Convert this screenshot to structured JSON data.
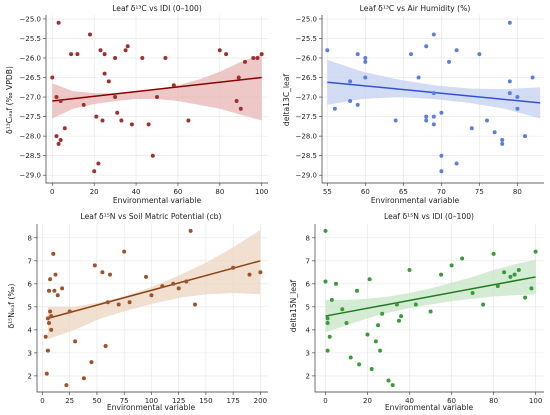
{
  "chart_data": [
    {
      "type": "scatter",
      "title": "Leaf δ¹³C vs IDI (0–100)",
      "xlabel": "Environmental variable",
      "ylabel": "δ¹³Cₗₑₐf (‰ VPDB)",
      "xlim": [
        -3,
        103
      ],
      "ylim": [
        -29.2,
        -24.9
      ],
      "xticks": [
        0,
        20,
        40,
        60,
        80,
        100
      ],
      "yticks": [
        -25.0,
        -25.5,
        -26.0,
        -26.5,
        -27.0,
        -27.5,
        -28.0,
        -28.5,
        -29.0
      ],
      "xtick_labels": [
        "0",
        "20",
        "40",
        "60",
        "80",
        "100"
      ],
      "ytick_labels": [
        "−25.0",
        "−25.5",
        "−26.0",
        "−26.5",
        "−27.0",
        "−27.5",
        "−28.0",
        "−28.5",
        "−29.0"
      ],
      "point_color": "#a03030",
      "line_color": "#8b0000",
      "band_color": "#e8b4b4",
      "grid": true,
      "fit": {
        "x": [
          0,
          100
        ],
        "y": [
          -27.1,
          -26.5
        ]
      },
      "band_lower": [
        -27.55,
        -27.3,
        -27.18,
        -27.1,
        -27.05,
        -27.05,
        -27.1,
        -27.2,
        -27.3,
        -27.45,
        -27.6
      ],
      "band_upper": [
        -26.65,
        -26.85,
        -26.9,
        -26.9,
        -26.87,
        -26.8,
        -26.7,
        -26.55,
        -26.35,
        -26.1,
        -25.9
      ],
      "points": {
        "x": [
          0,
          2,
          2,
          3,
          3,
          4,
          4,
          6,
          9,
          12,
          15,
          18,
          20,
          21,
          22,
          23,
          24,
          25,
          25,
          27,
          30,
          30,
          31,
          33,
          35,
          36,
          38,
          43,
          46,
          48,
          50,
          54,
          58,
          65,
          80,
          83,
          88,
          89,
          90,
          92,
          96,
          98,
          100
        ],
        "y": [
          -26.5,
          -27.0,
          -28.0,
          -25.1,
          -28.2,
          -28.1,
          -27.1,
          -27.8,
          -25.9,
          -25.9,
          -27.2,
          -25.4,
          -28.9,
          -27.5,
          -28.7,
          -25.8,
          -27.6,
          -26.4,
          -25.9,
          -26.6,
          -27.0,
          -26.0,
          -27.4,
          -27.6,
          -25.8,
          -25.7,
          -27.7,
          -26.0,
          -27.7,
          -28.5,
          -27.0,
          -26.0,
          -26.7,
          -27.6,
          -25.8,
          -25.9,
          -27.1,
          -26.5,
          -27.3,
          -26.1,
          -26.0,
          -26.0,
          -25.9
        ]
      }
    },
    {
      "type": "scatter",
      "title": "Leaf δ¹³C vs Air Humidity (%)",
      "xlabel": "Environmental variable",
      "ylabel": "delta13C_leaf",
      "xlim": [
        54.3,
        83.5
      ],
      "ylim": [
        -29.2,
        -24.9
      ],
      "xticks": [
        55,
        60,
        65,
        70,
        75,
        80
      ],
      "yticks": [
        -25.0,
        -25.5,
        -26.0,
        -26.5,
        -27.0,
        -27.5,
        -28.0,
        -28.5,
        -29.0
      ],
      "xtick_labels": [
        "55",
        "60",
        "65",
        "70",
        "75",
        "80"
      ],
      "ytick_labels": [
        "−25.0",
        "−25.5",
        "−26.0",
        "−26.5",
        "−27.0",
        "−27.5",
        "−28.0",
        "−28.5",
        "−29.0"
      ],
      "point_color": "#5b80d8",
      "line_color": "#3355cc",
      "band_color": "#c4d0f2",
      "grid": true,
      "fit": {
        "x": [
          55,
          83
        ],
        "y": [
          -26.62,
          -27.15
        ]
      },
      "band_lower": [
        -27.2,
        -27.05,
        -27.0,
        -27.05,
        -27.15,
        -27.3,
        -27.55
      ],
      "band_upper": [
        -26.05,
        -26.35,
        -26.55,
        -26.7,
        -26.78,
        -26.8,
        -26.75
      ],
      "points": {
        "x": [
          55,
          56,
          58,
          58,
          59,
          59,
          60,
          60,
          60,
          64,
          66,
          67,
          68,
          68,
          68,
          69,
          69,
          69,
          69,
          70,
          70,
          70,
          71,
          72,
          72,
          74,
          75,
          76,
          77,
          78,
          78,
          79,
          79,
          79,
          80,
          80,
          81,
          82
        ],
        "y": [
          -25.8,
          -27.3,
          -27.1,
          -26.6,
          -25.9,
          -27.2,
          -26.0,
          -26.1,
          -26.5,
          -27.6,
          -25.9,
          -26.5,
          -27.5,
          -27.6,
          -25.7,
          -25.4,
          -26.9,
          -27.5,
          -27.7,
          -28.5,
          -28.9,
          -27.4,
          -26.1,
          -25.8,
          -28.7,
          -27.8,
          -25.9,
          -27.6,
          -27.9,
          -28.1,
          -28.2,
          -26.6,
          -26.9,
          -25.1,
          -27.0,
          -27.3,
          -28.0,
          -26.5
        ]
      }
    },
    {
      "type": "scatter",
      "title": "Leaf δ¹⁵N vs Soil Matric Potential (cb)",
      "xlabel": "Environmental variable",
      "ylabel": "δ¹⁵Nₗₑₐf (‰)",
      "xlim": [
        -5,
        207
      ],
      "ylim": [
        1.3,
        8.6
      ],
      "xticks": [
        0,
        25,
        50,
        75,
        100,
        125,
        150,
        175,
        200
      ],
      "yticks": [
        2,
        3,
        4,
        5,
        6,
        7,
        8
      ],
      "xtick_labels": [
        "0",
        "25",
        "50",
        "75",
        "100",
        "125",
        "150",
        "175",
        "200"
      ],
      "ytick_labels": [
        "2",
        "3",
        "4",
        "5",
        "6",
        "7",
        "8"
      ],
      "point_color": "#a0522d",
      "line_color": "#8b4513",
      "band_color": "#ecd4c0",
      "grid": true,
      "fit": {
        "x": [
          5,
          200
        ],
        "y": [
          4.5,
          7.0
        ]
      },
      "band_lower": [
        3.6,
        4.0,
        4.5,
        4.85,
        5.15,
        5.4,
        5.55,
        5.6,
        5.55
      ],
      "band_upper": [
        5.0,
        5.0,
        5.2,
        5.5,
        5.9,
        6.4,
        6.95,
        7.6,
        8.35
      ],
      "points": {
        "x": [
          3,
          4,
          5,
          5,
          6,
          6,
          7,
          7,
          8,
          8,
          10,
          11,
          12,
          14,
          18,
          22,
          25,
          30,
          38,
          45,
          48,
          55,
          58,
          60,
          62,
          70,
          75,
          80,
          95,
          100,
          110,
          120,
          125,
          132,
          136,
          140,
          175,
          190,
          200
        ],
        "y": [
          3.7,
          2.1,
          4.5,
          3.1,
          5.7,
          4.3,
          4.8,
          6.2,
          4.0,
          4.6,
          7.3,
          5.7,
          6.4,
          5.5,
          5.8,
          1.6,
          4.8,
          3.5,
          1.9,
          2.6,
          6.8,
          6.5,
          3.3,
          5.2,
          6.4,
          5.1,
          7.4,
          5.2,
          6.3,
          5.5,
          5.9,
          6.0,
          5.8,
          6.1,
          8.3,
          5.1,
          6.7,
          6.4,
          6.5
        ]
      }
    },
    {
      "type": "scatter",
      "title": "Leaf δ¹⁵N vs IDI (0–100)",
      "xlabel": "Environmental variable",
      "ylabel": "delta15N_leaf",
      "xlim": [
        -5,
        104
      ],
      "ylim": [
        1.3,
        8.6
      ],
      "xticks": [
        0,
        20,
        40,
        60,
        80,
        100
      ],
      "yticks": [
        2,
        3,
        4,
        5,
        6,
        7,
        8
      ],
      "xtick_labels": [
        "0",
        "20",
        "40",
        "60",
        "80",
        "100"
      ],
      "ytick_labels": [
        "2",
        "3",
        "4",
        "5",
        "6",
        "7",
        "8"
      ],
      "point_color": "#3a9a3a",
      "line_color": "#1e7a1e",
      "band_color": "#c6e6c6",
      "grid": true,
      "fit": {
        "x": [
          0,
          100
        ],
        "y": [
          4.6,
          6.3
        ]
      },
      "band_lower": [
        3.9,
        4.2,
        4.5,
        4.75,
        4.95,
        5.1,
        5.25,
        5.35,
        5.45,
        5.5,
        5.55
      ],
      "band_upper": [
        5.3,
        5.3,
        5.35,
        5.45,
        5.6,
        5.8,
        6.05,
        6.3,
        6.6,
        6.85,
        7.05
      ],
      "points": {
        "x": [
          0,
          0,
          1,
          1,
          1,
          2,
          3,
          5,
          8,
          10,
          12,
          15,
          16,
          20,
          21,
          22,
          24,
          25,
          26,
          27,
          30,
          32,
          34,
          35,
          36,
          40,
          43,
          50,
          55,
          60,
          65,
          70,
          75,
          80,
          82,
          85,
          88,
          90,
          92,
          95,
          98,
          100
        ],
        "y": [
          8.3,
          6.1,
          4.3,
          4.5,
          3.1,
          3.7,
          5.3,
          6.0,
          4.9,
          4.3,
          2.8,
          5.7,
          2.5,
          3.8,
          6.2,
          2.3,
          3.5,
          4.2,
          3.1,
          4.7,
          1.8,
          1.6,
          5.1,
          4.4,
          4.6,
          6.6,
          5.1,
          4.8,
          6.4,
          6.8,
          7.1,
          5.6,
          5.1,
          7.3,
          5.9,
          6.5,
          6.3,
          6.4,
          6.6,
          5.4,
          5.8,
          7.4
        ]
      }
    }
  ]
}
